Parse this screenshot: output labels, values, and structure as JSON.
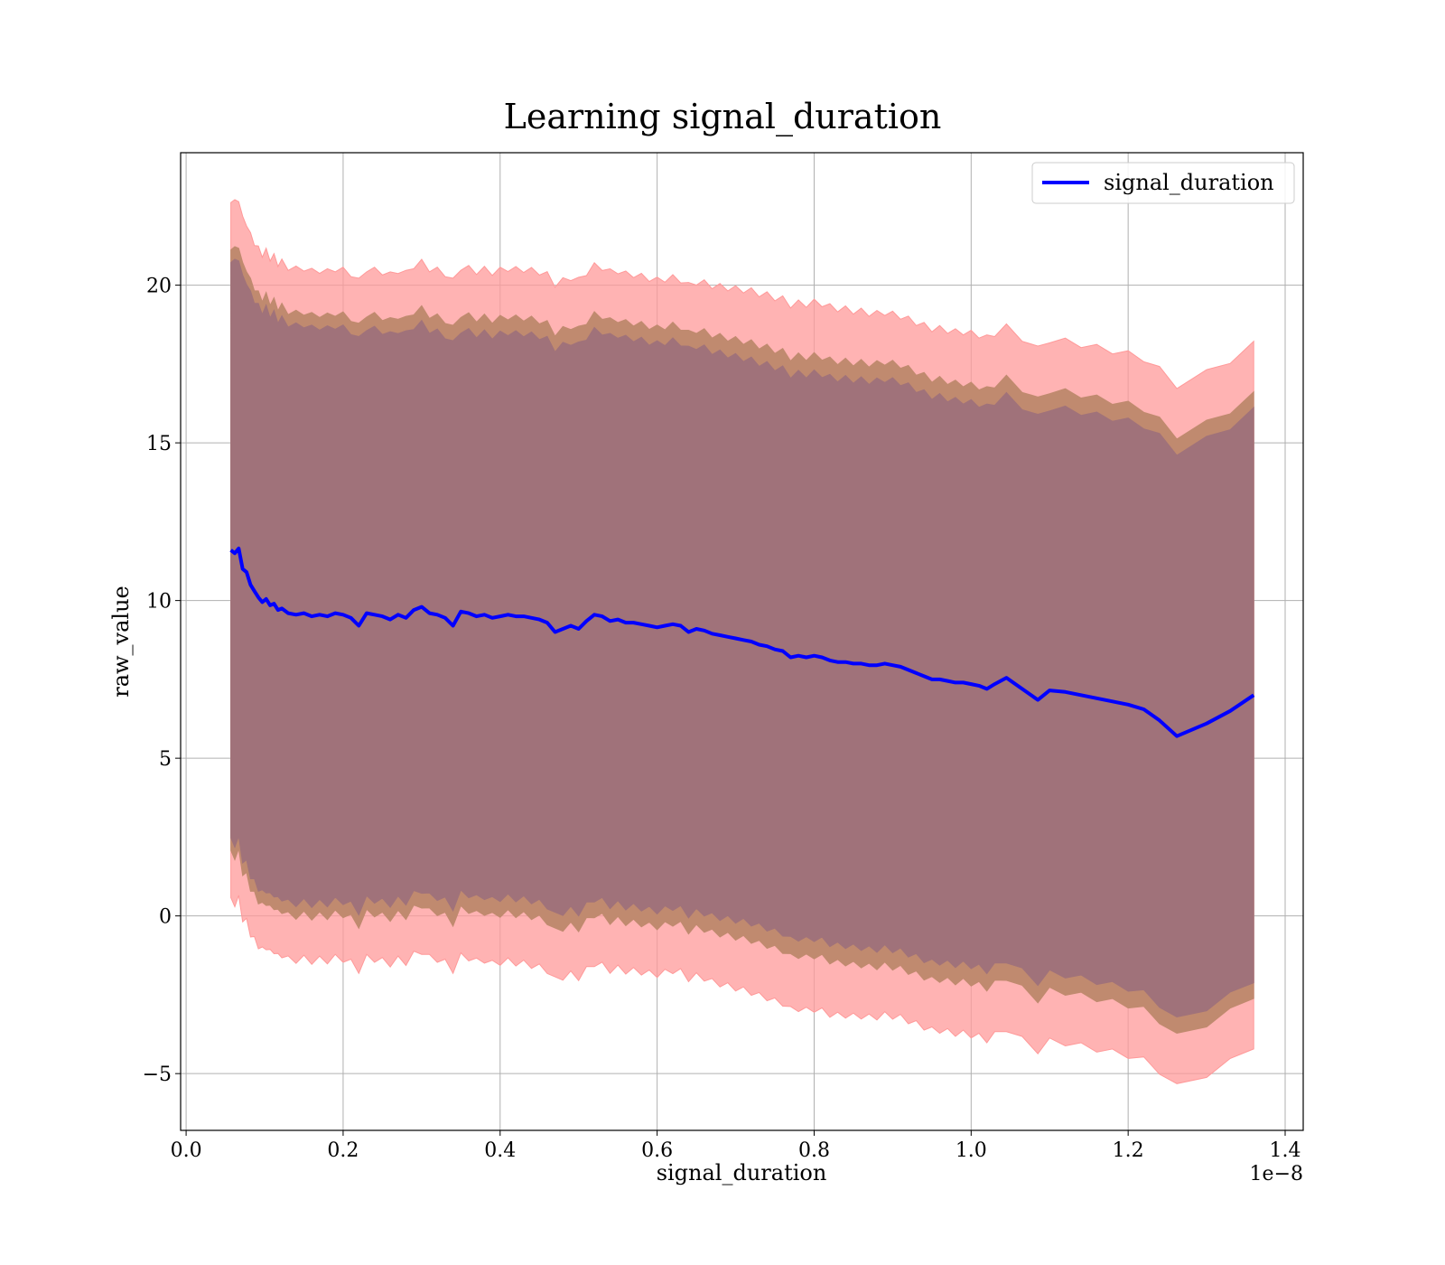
{
  "chart_data": {
    "type": "line",
    "title": "Learning signal_duration",
    "xlabel": "signal_duration",
    "ylabel": "raw_value",
    "x_offset_label": "1e−8",
    "x_ticks": [
      0.0,
      0.2,
      0.4,
      0.6,
      0.8,
      1.0,
      1.2,
      1.4
    ],
    "x_tick_labels": [
      "0.0",
      "0.2",
      "0.4",
      "0.6",
      "0.8",
      "1.0",
      "1.2",
      "1.4"
    ],
    "y_ticks": [
      -5,
      0,
      5,
      10,
      15,
      20
    ],
    "y_tick_labels": [
      "−5",
      "0",
      "5",
      "10",
      "15",
      "20"
    ],
    "xlim": [
      -0.007,
      1.423
    ],
    "ylim": [
      -6.8,
      24.2
    ],
    "grid": true,
    "legend_position": "top-right",
    "colors": {
      "line": "#0000ff",
      "outer_band": "#ff9999",
      "middle_band": "#c08a6f",
      "inner_band": "#a0727a"
    },
    "series": [
      {
        "name": "signal_duration",
        "x": [
          0.057,
          0.062,
          0.067,
          0.072,
          0.077,
          0.082,
          0.087,
          0.092,
          0.097,
          0.102,
          0.107,
          0.112,
          0.117,
          0.122,
          0.13,
          0.14,
          0.15,
          0.16,
          0.17,
          0.18,
          0.19,
          0.2,
          0.21,
          0.22,
          0.23,
          0.24,
          0.25,
          0.26,
          0.27,
          0.28,
          0.29,
          0.3,
          0.31,
          0.32,
          0.33,
          0.34,
          0.35,
          0.36,
          0.37,
          0.38,
          0.39,
          0.4,
          0.41,
          0.42,
          0.43,
          0.44,
          0.45,
          0.46,
          0.47,
          0.48,
          0.49,
          0.5,
          0.51,
          0.52,
          0.53,
          0.54,
          0.55,
          0.56,
          0.57,
          0.58,
          0.59,
          0.6,
          0.61,
          0.62,
          0.63,
          0.64,
          0.65,
          0.66,
          0.67,
          0.68,
          0.69,
          0.7,
          0.71,
          0.72,
          0.73,
          0.74,
          0.75,
          0.76,
          0.77,
          0.78,
          0.79,
          0.8,
          0.81,
          0.82,
          0.83,
          0.84,
          0.85,
          0.86,
          0.87,
          0.88,
          0.89,
          0.9,
          0.91,
          0.92,
          0.93,
          0.94,
          0.95,
          0.96,
          0.97,
          0.98,
          0.99,
          1.0,
          1.01,
          1.02,
          1.03,
          1.045,
          1.065,
          1.085,
          1.1,
          1.12,
          1.14,
          1.16,
          1.18,
          1.2,
          1.22,
          1.24,
          1.262,
          1.3,
          1.33,
          1.36
        ],
        "mean": [
          11.6,
          11.5,
          11.65,
          11.0,
          10.9,
          10.5,
          10.3,
          10.1,
          9.95,
          10.05,
          9.85,
          9.9,
          9.7,
          9.75,
          9.6,
          9.55,
          9.6,
          9.5,
          9.55,
          9.5,
          9.6,
          9.55,
          9.45,
          9.2,
          9.6,
          9.55,
          9.5,
          9.4,
          9.55,
          9.45,
          9.7,
          9.8,
          9.6,
          9.55,
          9.45,
          9.2,
          9.65,
          9.6,
          9.5,
          9.55,
          9.45,
          9.5,
          9.55,
          9.5,
          9.5,
          9.45,
          9.4,
          9.3,
          9.0,
          9.1,
          9.2,
          9.1,
          9.35,
          9.55,
          9.5,
          9.35,
          9.4,
          9.3,
          9.3,
          9.25,
          9.2,
          9.15,
          9.2,
          9.25,
          9.2,
          9.0,
          9.1,
          9.05,
          8.95,
          8.9,
          8.85,
          8.8,
          8.75,
          8.7,
          8.6,
          8.55,
          8.45,
          8.4,
          8.2,
          8.25,
          8.2,
          8.25,
          8.2,
          8.1,
          8.05,
          8.05,
          8.0,
          8.0,
          7.95,
          7.95,
          8.0,
          7.95,
          7.9,
          7.8,
          7.7,
          7.6,
          7.5,
          7.5,
          7.45,
          7.4,
          7.4,
          7.35,
          7.3,
          7.2,
          7.35,
          7.55,
          7.2,
          6.85,
          7.15,
          7.1,
          7.0,
          6.9,
          6.8,
          6.7,
          6.55,
          6.2,
          5.7,
          6.1,
          6.5,
          7.0
        ]
      }
    ],
    "band_offsets": {
      "inner": [
        9.2,
        9.2,
        9.1,
        9.0,
        8.9,
        8.95,
        9.0,
        8.95,
        8.9,
        8.95,
        9.0,
        8.9,
        8.95,
        9.0
      ],
      "middle": [
        9.6,
        9.6,
        9.5,
        9.45,
        9.4,
        9.45,
        9.5,
        9.45,
        9.45,
        9.5,
        9.55,
        9.45,
        9.5,
        9.5
      ],
      "outer": [
        11.1,
        11.0,
        10.9,
        10.9,
        10.9,
        11.0,
        11.05,
        10.95,
        11.1,
        11.2,
        11.1,
        11.1,
        11.1,
        11.1
      ]
    }
  }
}
